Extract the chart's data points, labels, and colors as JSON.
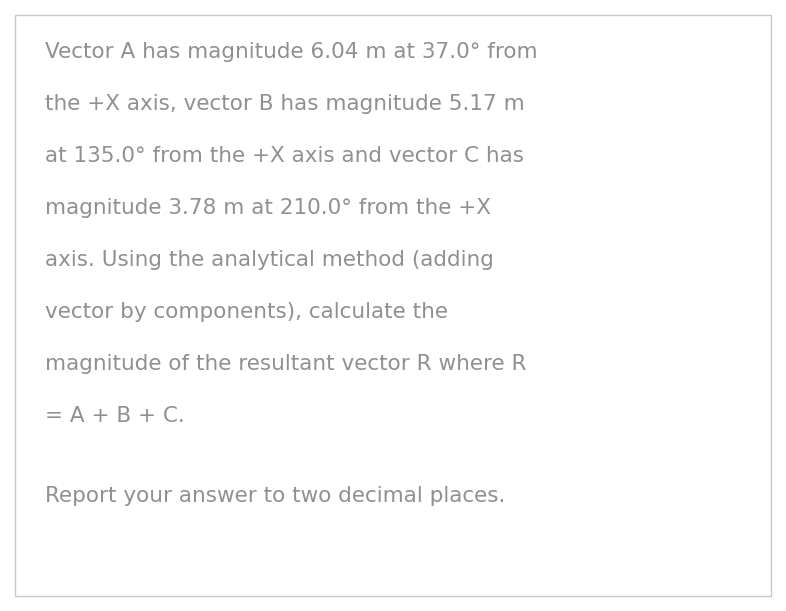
{
  "background_color": "#ffffff",
  "border_color": "#c8c8c8",
  "text_color": "#909090",
  "font_size": 15.5,
  "lines_main": [
    "Vector A has magnitude 6.04 m at 37.0° from",
    "the +X axis, vector B has magnitude 5.17 m",
    "at 135.0° from the +X axis and vector C has",
    "magnitude 3.78 m at 210.0° from the +X",
    "axis. Using the analytical method (adding",
    "vector by components), calculate the",
    "magnitude of the resultant vector R where R",
    "= A + B + C."
  ],
  "line_report": "Report your answer to two decimal places.",
  "fig_width": 7.86,
  "fig_height": 6.11,
  "dpi": 100
}
